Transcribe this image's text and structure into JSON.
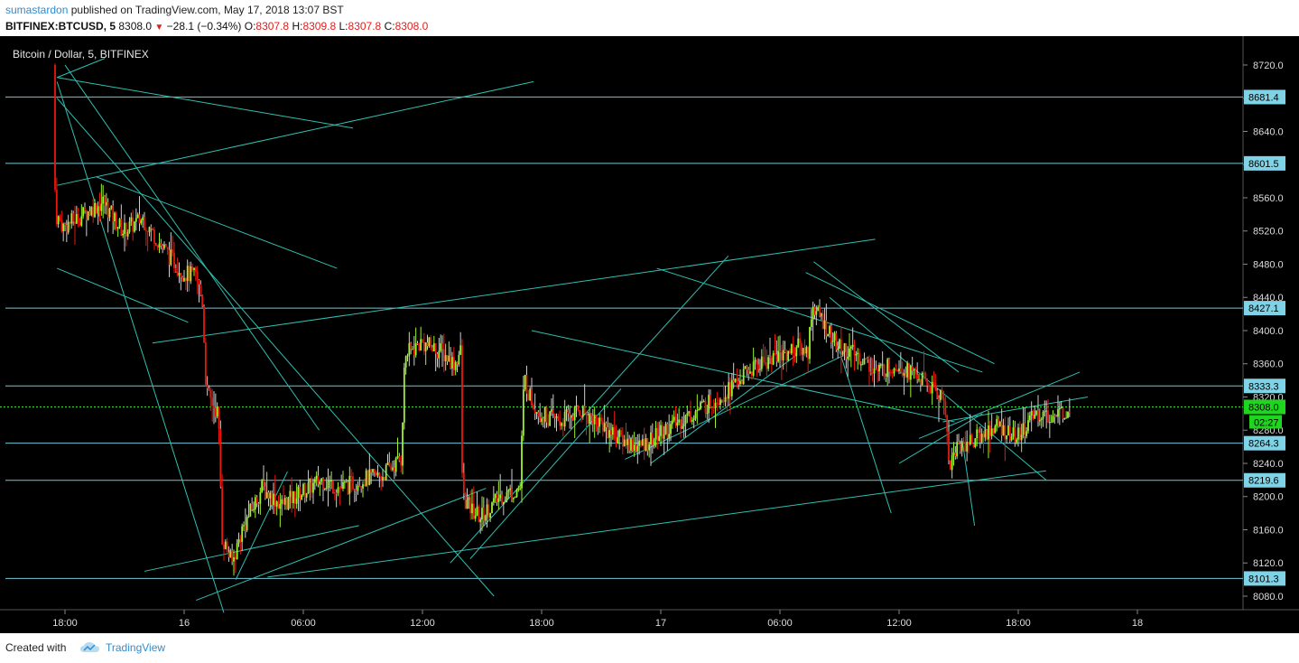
{
  "header": {
    "author": "sumastardon",
    "published_text": "published on TradingView.com, May 17, 2018 13:07 BST",
    "symbol": "BITFINEX:BTCUSD, 5",
    "last_price": "8308.0",
    "change_text": "−28.1 (−0.34%)",
    "open_label": "O:",
    "open": "8307.8",
    "high_label": "H:",
    "high": "8309.8",
    "low_label": "L:",
    "low": "8307.8",
    "close_label": "C:",
    "close": "8308.0"
  },
  "footer": {
    "created_with": "Created with",
    "brand": "TradingView"
  },
  "colors": {
    "background": "#000000",
    "up_candle": "#9cf22f",
    "down_candle": "#e8180d",
    "trendline": "#2fbfb0",
    "level_line": "#76c5d6",
    "price_label_bg": "#7fd3e6",
    "current_price_bg": "#1fd61f",
    "axis_text": "#dddddd"
  },
  "chart_data": {
    "type": "candlestick",
    "title": "Bitcoin / Dollar, 5, BITFINEX",
    "y_ticks": [
      "8080.0",
      "8120.0",
      "8160.0",
      "8200.0",
      "8240.0",
      "8280.0",
      "8320.0",
      "8360.0",
      "8400.0",
      "8440.0",
      "8480.0",
      "8520.0",
      "8560.0",
      "8600.0",
      "8640.0",
      "8680.0",
      "8720.0"
    ],
    "x_ticks": [
      "18:00",
      "16",
      "06:00",
      "12:00",
      "18:00",
      "17",
      "06:00",
      "12:00",
      "18:00",
      "18"
    ],
    "ylim": [
      8065,
      8750
    ],
    "horizontal_levels": [
      8681.4,
      8601.5,
      8427.1,
      8333.3,
      8264.3,
      8219.6,
      8101.3
    ],
    "level_labels": [
      "8681.4",
      "8601.5",
      "8427.1",
      "8333.3",
      "8264.3",
      "8219.6",
      "8101.3"
    ],
    "current_price": "8308.0",
    "countdown": "02:27",
    "price_path_hours": [
      [
        -9.5,
        8720
      ],
      [
        -9.4,
        8540
      ],
      [
        -9.0,
        8525
      ],
      [
        -8.0,
        8540
      ],
      [
        -7.0,
        8555
      ],
      [
        -6.0,
        8520
      ],
      [
        -5.0,
        8535
      ],
      [
        -4.0,
        8500
      ],
      [
        -3.0,
        8470
      ],
      [
        -2.3,
        8465
      ],
      [
        -2.0,
        8435
      ],
      [
        -1.8,
        8325
      ],
      [
        -1.2,
        8300
      ],
      [
        -1.0,
        8150
      ],
      [
        -0.5,
        8120
      ],
      [
        0.0,
        8160
      ],
      [
        1.0,
        8210
      ],
      [
        2.0,
        8190
      ],
      [
        3.0,
        8205
      ],
      [
        4.0,
        8220
      ],
      [
        5.0,
        8210
      ],
      [
        6.0,
        8220
      ],
      [
        7.0,
        8225
      ],
      [
        8.0,
        8245
      ],
      [
        8.2,
        8370
      ],
      [
        9.0,
        8385
      ],
      [
        10.0,
        8375
      ],
      [
        10.7,
        8360
      ],
      [
        11.0,
        8375
      ],
      [
        11.1,
        8200
      ],
      [
        11.5,
        8185
      ],
      [
        12.0,
        8175
      ],
      [
        13.0,
        8200
      ],
      [
        14.0,
        8210
      ],
      [
        14.2,
        8345
      ],
      [
        14.5,
        8320
      ],
      [
        15.0,
        8300
      ],
      [
        16.0,
        8290
      ],
      [
        17.0,
        8305
      ],
      [
        18.0,
        8290
      ],
      [
        19.0,
        8270
      ],
      [
        20.0,
        8260
      ],
      [
        21.0,
        8275
      ],
      [
        22.0,
        8290
      ],
      [
        23.0,
        8305
      ],
      [
        24.0,
        8320
      ],
      [
        25.0,
        8340
      ],
      [
        26.0,
        8360
      ],
      [
        27.0,
        8370
      ],
      [
        28.0,
        8380
      ],
      [
        28.5,
        8375
      ],
      [
        28.7,
        8430
      ],
      [
        29.0,
        8420
      ],
      [
        30.0,
        8380
      ],
      [
        31.0,
        8370
      ],
      [
        32.0,
        8350
      ],
      [
        33.0,
        8360
      ],
      [
        34.0,
        8345
      ],
      [
        35.0,
        8325
      ],
      [
        35.4,
        8315
      ],
      [
        35.6,
        8235
      ],
      [
        36.0,
        8260
      ],
      [
        37.0,
        8270
      ],
      [
        38.0,
        8285
      ],
      [
        39.0,
        8270
      ],
      [
        40.0,
        8300
      ],
      [
        41.0,
        8295
      ],
      [
        41.6,
        8308
      ]
    ]
  }
}
